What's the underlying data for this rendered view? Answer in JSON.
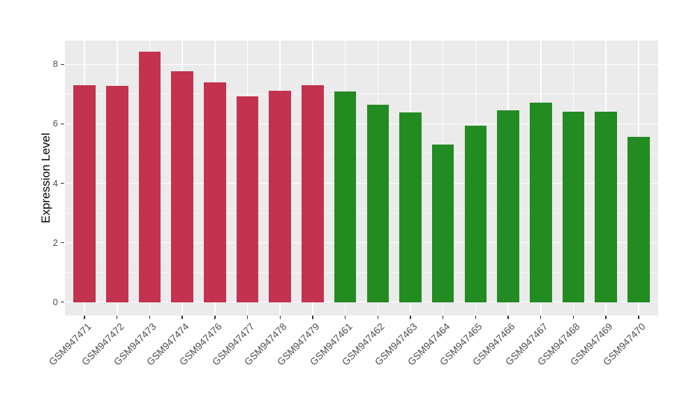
{
  "figure": {
    "background": "#FFFFFF",
    "panel_background": "#EBEBEB",
    "gridline_color": "#FFFFFF",
    "tick_color": "#333333",
    "axis_text_color": "#4D4D4D",
    "axis_title_color": "#000000"
  },
  "chart_data": {
    "type": "bar",
    "title": "",
    "xlabel": "",
    "ylabel": "Expression Level",
    "categories": [
      "GSM947471",
      "GSM947472",
      "GSM947473",
      "GSM947474",
      "GSM947476",
      "GSM947477",
      "GSM947478",
      "GSM947479",
      "GSM947461",
      "GSM947462",
      "GSM947463",
      "GSM947464",
      "GSM947465",
      "GSM947466",
      "GSM947467",
      "GSM947468",
      "GSM947469",
      "GSM947470"
    ],
    "values": [
      7.31,
      7.28,
      8.42,
      7.77,
      7.4,
      6.93,
      7.11,
      7.31,
      7.09,
      6.65,
      6.39,
      5.31,
      5.94,
      6.46,
      6.72,
      6.42,
      6.4,
      5.56
    ],
    "groups": [
      "red",
      "red",
      "red",
      "red",
      "red",
      "red",
      "red",
      "red",
      "green",
      "green",
      "green",
      "green",
      "green",
      "green",
      "green",
      "green",
      "green",
      "green"
    ],
    "group_colors": {
      "red": "#C3324E",
      "green": "#228B22"
    },
    "ylim": [
      0,
      8.8
    ],
    "yticks": [
      0,
      2,
      4,
      6,
      8
    ],
    "yticks_minor": [
      1,
      3,
      5,
      7
    ],
    "x_label_rotation_deg": 45,
    "grid": "on",
    "legend": "none"
  }
}
